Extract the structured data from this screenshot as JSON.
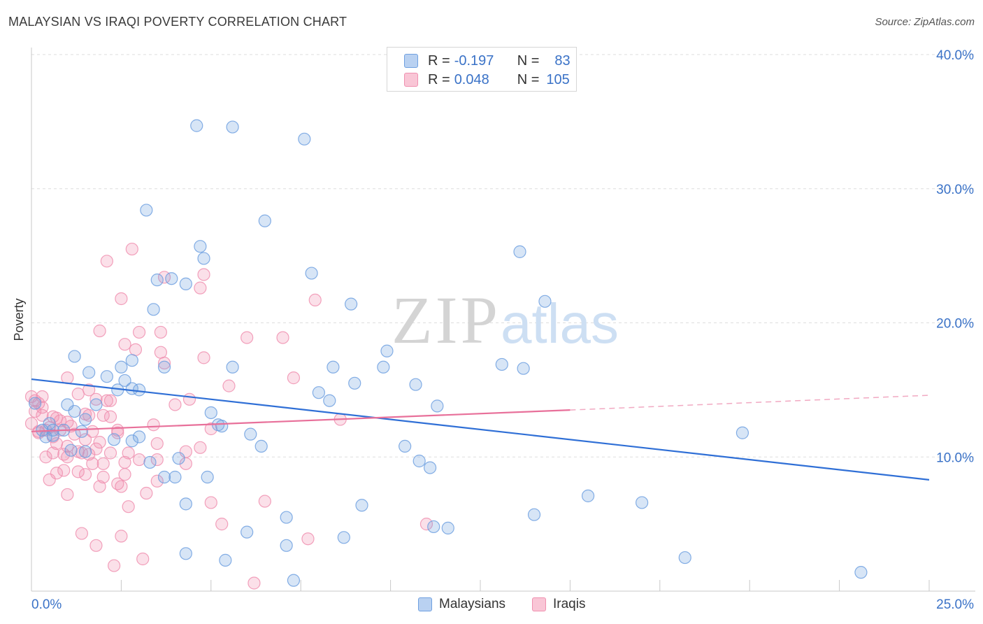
{
  "title": "MALAYSIAN VS IRAQI POVERTY CORRELATION CHART",
  "source": "Source: ZipAtlas.com",
  "watermark": {
    "zip": "ZIP",
    "atlas": "atlas"
  },
  "legend": {
    "rows": [
      {
        "r_label": "R =",
        "r_value": "-0.197",
        "n_label": "N =",
        "n_value": "83",
        "color": "#6fa0e0"
      },
      {
        "r_label": "R =",
        "r_value": "0.048",
        "n_label": "N =",
        "n_value": "105",
        "color": "#f090b0"
      }
    ]
  },
  "bottom_legend": {
    "malaysians": "Malaysians",
    "iraqis": "Iraqis"
  },
  "chart_data": {
    "type": "scatter",
    "title": "MALAYSIAN VS IRAQI POVERTY CORRELATION CHART",
    "xlabel": "",
    "ylabel": "Poverty",
    "xlim": [
      0,
      25
    ],
    "ylim": [
      0,
      40
    ],
    "x_tick_labels": [
      "0.0%",
      "25.0%"
    ],
    "y_ticks": [
      10,
      20,
      30,
      40
    ],
    "y_tick_labels": [
      "10.0%",
      "20.0%",
      "30.0%",
      "40.0%"
    ],
    "grid": true,
    "legend_placement": "top-center",
    "series": [
      {
        "name": "Malaysians",
        "color": "#6fa0e0",
        "line_color": "#2f6fd6",
        "trend": {
          "x": [
            0,
            25
          ],
          "y": [
            15.8,
            8.3
          ]
        },
        "points": [
          [
            4.6,
            34.7
          ],
          [
            5.6,
            34.6
          ],
          [
            7.6,
            33.7
          ],
          [
            3.2,
            28.4
          ],
          [
            6.5,
            27.6
          ],
          [
            4.7,
            25.7
          ],
          [
            4.8,
            24.8
          ],
          [
            13.6,
            25.3
          ],
          [
            7.8,
            23.7
          ],
          [
            3.5,
            23.2
          ],
          [
            3.9,
            23.3
          ],
          [
            4.3,
            22.9
          ],
          [
            8.9,
            21.4
          ],
          [
            14.3,
            21.6
          ],
          [
            3.4,
            21.0
          ],
          [
            1.2,
            17.5
          ],
          [
            2.5,
            16.7
          ],
          [
            2.8,
            17.2
          ],
          [
            1.6,
            16.3
          ],
          [
            3.7,
            16.7
          ],
          [
            5.6,
            16.7
          ],
          [
            8.4,
            16.7
          ],
          [
            9.8,
            16.7
          ],
          [
            13.1,
            16.9
          ],
          [
            13.7,
            16.6
          ],
          [
            2.1,
            16.0
          ],
          [
            2.6,
            15.7
          ],
          [
            2.4,
            15.0
          ],
          [
            2.8,
            15.1
          ],
          [
            3.0,
            15.0
          ],
          [
            10.7,
            15.4
          ],
          [
            8.0,
            14.8
          ],
          [
            9.0,
            15.5
          ],
          [
            0.1,
            14.0
          ],
          [
            8.3,
            14.2
          ],
          [
            1.0,
            13.9
          ],
          [
            1.8,
            13.9
          ],
          [
            11.3,
            13.8
          ],
          [
            5.0,
            13.3
          ],
          [
            1.2,
            13.4
          ],
          [
            0.5,
            12.5
          ],
          [
            0.9,
            12.0
          ],
          [
            1.5,
            12.8
          ],
          [
            5.2,
            12.4
          ],
          [
            5.3,
            12.3
          ],
          [
            0.3,
            12.0
          ],
          [
            0.6,
            12.0
          ],
          [
            0.6,
            11.6
          ],
          [
            1.4,
            11.9
          ],
          [
            0.4,
            11.5
          ],
          [
            3.0,
            11.5
          ],
          [
            2.3,
            11.3
          ],
          [
            2.8,
            11.2
          ],
          [
            6.1,
            11.7
          ],
          [
            6.4,
            10.8
          ],
          [
            10.4,
            10.8
          ],
          [
            19.8,
            11.8
          ],
          [
            1.1,
            10.5
          ],
          [
            1.5,
            10.4
          ],
          [
            4.1,
            9.9
          ],
          [
            3.3,
            9.6
          ],
          [
            10.8,
            9.7
          ],
          [
            11.1,
            9.2
          ],
          [
            3.7,
            8.5
          ],
          [
            4.0,
            8.5
          ],
          [
            4.9,
            8.5
          ],
          [
            15.5,
            7.1
          ],
          [
            17.0,
            6.6
          ],
          [
            4.3,
            6.5
          ],
          [
            9.2,
            6.4
          ],
          [
            7.1,
            5.5
          ],
          [
            14.0,
            5.7
          ],
          [
            11.2,
            4.8
          ],
          [
            11.6,
            4.7
          ],
          [
            6.0,
            4.4
          ],
          [
            8.7,
            4.0
          ],
          [
            7.1,
            3.4
          ],
          [
            4.3,
            2.8
          ],
          [
            5.4,
            2.3
          ],
          [
            18.2,
            2.5
          ],
          [
            7.3,
            0.8
          ],
          [
            23.1,
            1.4
          ],
          [
            9.9,
            17.9
          ]
        ]
      },
      {
        "name": "Iraqis",
        "color": "#f090b0",
        "line_color": "#e8709a",
        "trend": {
          "x": [
            0,
            15
          ],
          "y": [
            11.9,
            13.5
          ],
          "dashed_to": [
            25,
            14.6
          ]
        },
        "points": [
          [
            2.8,
            25.5
          ],
          [
            2.1,
            24.6
          ],
          [
            3.7,
            23.4
          ],
          [
            4.8,
            23.6
          ],
          [
            4.7,
            22.6
          ],
          [
            2.5,
            21.8
          ],
          [
            7.9,
            21.7
          ],
          [
            1.9,
            19.4
          ],
          [
            3.0,
            19.3
          ],
          [
            3.6,
            19.3
          ],
          [
            6.0,
            18.9
          ],
          [
            7.0,
            18.9
          ],
          [
            2.6,
            18.4
          ],
          [
            2.9,
            18.0
          ],
          [
            3.6,
            17.8
          ],
          [
            4.8,
            17.4
          ],
          [
            3.7,
            17.0
          ],
          [
            1.0,
            15.9
          ],
          [
            7.3,
            15.9
          ],
          [
            5.5,
            15.3
          ],
          [
            1.6,
            15.0
          ],
          [
            0.0,
            14.5
          ],
          [
            0.1,
            14.2
          ],
          [
            0.2,
            14.0
          ],
          [
            0.3,
            13.7
          ],
          [
            2.1,
            14.2
          ],
          [
            2.2,
            14.2
          ],
          [
            1.8,
            14.3
          ],
          [
            4.4,
            14.3
          ],
          [
            4.0,
            13.9
          ],
          [
            0.1,
            13.4
          ],
          [
            0.6,
            13.0
          ],
          [
            0.3,
            13.1
          ],
          [
            0.7,
            12.9
          ],
          [
            1.0,
            12.6
          ],
          [
            1.5,
            13.2
          ],
          [
            1.6,
            13.1
          ],
          [
            1.1,
            12.3
          ],
          [
            0.8,
            12.0
          ],
          [
            0.5,
            12.2
          ],
          [
            2.2,
            13.0
          ],
          [
            0.0,
            12.5
          ],
          [
            8.6,
            12.8
          ],
          [
            0.4,
            12.0
          ],
          [
            0.2,
            11.9
          ],
          [
            0.6,
            11.5
          ],
          [
            1.2,
            11.7
          ],
          [
            1.5,
            11.3
          ],
          [
            1.7,
            11.9
          ],
          [
            2.4,
            12.0
          ],
          [
            0.7,
            11.0
          ],
          [
            1.0,
            10.8
          ],
          [
            1.3,
            10.4
          ],
          [
            1.6,
            10.2
          ],
          [
            1.0,
            10.0
          ],
          [
            1.4,
            10.3
          ],
          [
            1.8,
            10.6
          ],
          [
            2.2,
            10.3
          ],
          [
            2.7,
            10.3
          ],
          [
            3.5,
            11.0
          ],
          [
            4.3,
            10.4
          ],
          [
            4.7,
            10.7
          ],
          [
            0.4,
            10.0
          ],
          [
            0.6,
            10.3
          ],
          [
            1.7,
            9.5
          ],
          [
            2.0,
            9.5
          ],
          [
            3.0,
            9.8
          ],
          [
            3.5,
            9.8
          ],
          [
            4.3,
            9.5
          ],
          [
            0.5,
            8.3
          ],
          [
            1.3,
            8.9
          ],
          [
            2.0,
            8.5
          ],
          [
            2.6,
            8.7
          ],
          [
            1.5,
            8.7
          ],
          [
            2.4,
            8.0
          ],
          [
            0.7,
            8.8
          ],
          [
            1.9,
            7.8
          ],
          [
            2.5,
            7.8
          ],
          [
            1.0,
            7.2
          ],
          [
            3.2,
            7.3
          ],
          [
            5.0,
            6.6
          ],
          [
            6.5,
            6.7
          ],
          [
            2.7,
            6.3
          ],
          [
            5.3,
            5.0
          ],
          [
            11.0,
            5.0
          ],
          [
            1.4,
            4.3
          ],
          [
            2.5,
            4.1
          ],
          [
            7.7,
            3.9
          ],
          [
            1.8,
            3.4
          ],
          [
            3.1,
            2.4
          ],
          [
            2.3,
            1.9
          ],
          [
            6.2,
            0.6
          ],
          [
            0.2,
            11.8
          ],
          [
            0.9,
            10.2
          ],
          [
            2.4,
            11.8
          ],
          [
            3.4,
            12.4
          ],
          [
            5.0,
            12.1
          ],
          [
            1.3,
            14.7
          ],
          [
            2.0,
            13.1
          ],
          [
            0.3,
            14.5
          ],
          [
            0.8,
            12.7
          ],
          [
            1.9,
            11.1
          ],
          [
            3.5,
            8.2
          ],
          [
            0.9,
            9.0
          ],
          [
            2.6,
            9.6
          ]
        ]
      }
    ]
  }
}
